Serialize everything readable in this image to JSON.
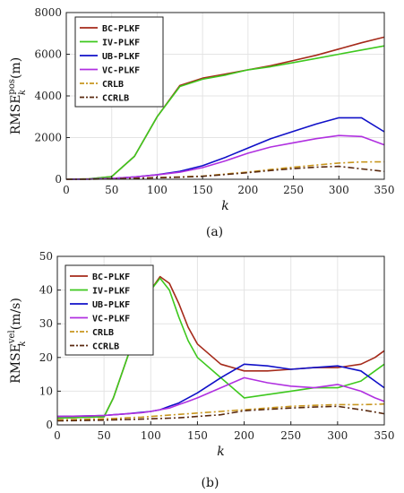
{
  "chart_data": [
    {
      "type": "line",
      "panel_label": "(a)",
      "xlabel": "k",
      "ylabel_main": "RMSE",
      "ylabel_sup": "pos",
      "ylabel_sub": "k",
      "ylabel_unit": "(m)",
      "xlim": [
        0,
        350
      ],
      "ylim": [
        0,
        8000
      ],
      "xticks": [
        0,
        50,
        100,
        150,
        200,
        250,
        300,
        350
      ],
      "yticks": [
        0,
        2000,
        4000,
        6000,
        8000
      ],
      "grid": true,
      "legend_position": "top-left",
      "x": [
        0,
        25,
        50,
        75,
        100,
        125,
        150,
        175,
        200,
        225,
        250,
        275,
        300,
        325,
        350
      ],
      "series": [
        {
          "name": "BC-PLKF",
          "color": "#a52a1a",
          "dash": "solid",
          "values": [
            0,
            20,
            130,
            1100,
            3000,
            4500,
            4850,
            5050,
            5250,
            5450,
            5700,
            5950,
            6250,
            6550,
            6820
          ]
        },
        {
          "name": "IV-PLKF",
          "color": "#3ec81e",
          "dash": "solid",
          "values": [
            0,
            20,
            130,
            1100,
            3000,
            4450,
            4800,
            5000,
            5250,
            5400,
            5600,
            5800,
            6000,
            6200,
            6400
          ]
        },
        {
          "name": "UB-PLKF",
          "color": "#1010c8",
          "dash": "solid",
          "values": [
            0,
            10,
            40,
            110,
            220,
            380,
            650,
            1050,
            1500,
            1950,
            2300,
            2650,
            2950,
            2950,
            2280
          ]
        },
        {
          "name": "VC-PLKF",
          "color": "#b030e0",
          "dash": "solid",
          "values": [
            0,
            10,
            40,
            110,
            210,
            340,
            560,
            880,
            1250,
            1550,
            1750,
            1950,
            2100,
            2050,
            1650
          ]
        },
        {
          "name": "CRLB",
          "color": "#c8961e",
          "dash": "dashdot",
          "values": [
            0,
            5,
            20,
            50,
            80,
            110,
            150,
            250,
            350,
            470,
            580,
            680,
            780,
            830,
            840
          ]
        },
        {
          "name": "CCRLB",
          "color": "#5a2a10",
          "dash": "dashdot",
          "values": [
            0,
            5,
            20,
            45,
            75,
            100,
            140,
            230,
            320,
            420,
            510,
            580,
            620,
            500,
            380
          ]
        }
      ]
    },
    {
      "type": "line",
      "panel_label": "(b)",
      "xlabel": "k",
      "ylabel_main": "RMSE",
      "ylabel_sup": "vel",
      "ylabel_sub": "k",
      "ylabel_unit": "(m/s)",
      "xlim": [
        0,
        350
      ],
      "ylim": [
        0,
        50
      ],
      "xticks": [
        0,
        50,
        100,
        150,
        200,
        250,
        300,
        350
      ],
      "yticks": [
        0,
        10,
        20,
        30,
        40,
        50
      ],
      "grid": true,
      "legend_position": "top-left",
      "x": [
        0,
        25,
        50,
        60,
        75,
        90,
        100,
        110,
        120,
        130,
        140,
        150,
        175,
        200,
        225,
        250,
        275,
        300,
        325,
        340,
        350
      ],
      "series": [
        {
          "name": "BC-PLKF",
          "color": "#a52a1a",
          "dash": "solid",
          "values": [
            2,
            2.2,
            2.4,
            8,
            20,
            32,
            40,
            44,
            42,
            36,
            29,
            24,
            18,
            16,
            16,
            16.5,
            17,
            17,
            18,
            20,
            22
          ]
        },
        {
          "name": "IV-PLKF",
          "color": "#3ec81e",
          "dash": "solid",
          "values": [
            2,
            2.2,
            2.4,
            8,
            20,
            32,
            40,
            43.5,
            40,
            32,
            25,
            20,
            14,
            8,
            9,
            10,
            11,
            11,
            13,
            16,
            18
          ]
        },
        {
          "name": "UB-PLKF",
          "color": "#1010c8",
          "dash": "solid",
          "values": [
            2.5,
            2.6,
            2.8,
            3.0,
            3.3,
            3.7,
            4,
            4.5,
            5.5,
            6.5,
            8,
            9.5,
            14,
            18,
            17.5,
            16.5,
            17,
            17.5,
            16,
            13,
            11
          ]
        },
        {
          "name": "VC-PLKF",
          "color": "#b030e0",
          "dash": "solid",
          "values": [
            2.5,
            2.6,
            2.8,
            3.0,
            3.3,
            3.6,
            4,
            4.5,
            5,
            6,
            7,
            8,
            11,
            14,
            12.5,
            11.5,
            11,
            12,
            10,
            8,
            7
          ]
        },
        {
          "name": "CRLB",
          "color": "#c8961e",
          "dash": "dashdot",
          "values": [
            1.5,
            1.6,
            1.8,
            1.9,
            2.1,
            2.3,
            2.5,
            2.7,
            2.9,
            3.1,
            3.3,
            3.5,
            4,
            4.5,
            5,
            5.5,
            5.8,
            6,
            6,
            6.1,
            6.2
          ]
        },
        {
          "name": "CCRLB",
          "color": "#5a2a10",
          "dash": "dashdot",
          "values": [
            1.2,
            1.3,
            1.4,
            1.5,
            1.6,
            1.7,
            1.8,
            1.9,
            2.0,
            2.1,
            2.3,
            2.5,
            3,
            4.2,
            4.6,
            5,
            5.3,
            5.5,
            4.5,
            3.8,
            3.3
          ]
        }
      ]
    }
  ]
}
